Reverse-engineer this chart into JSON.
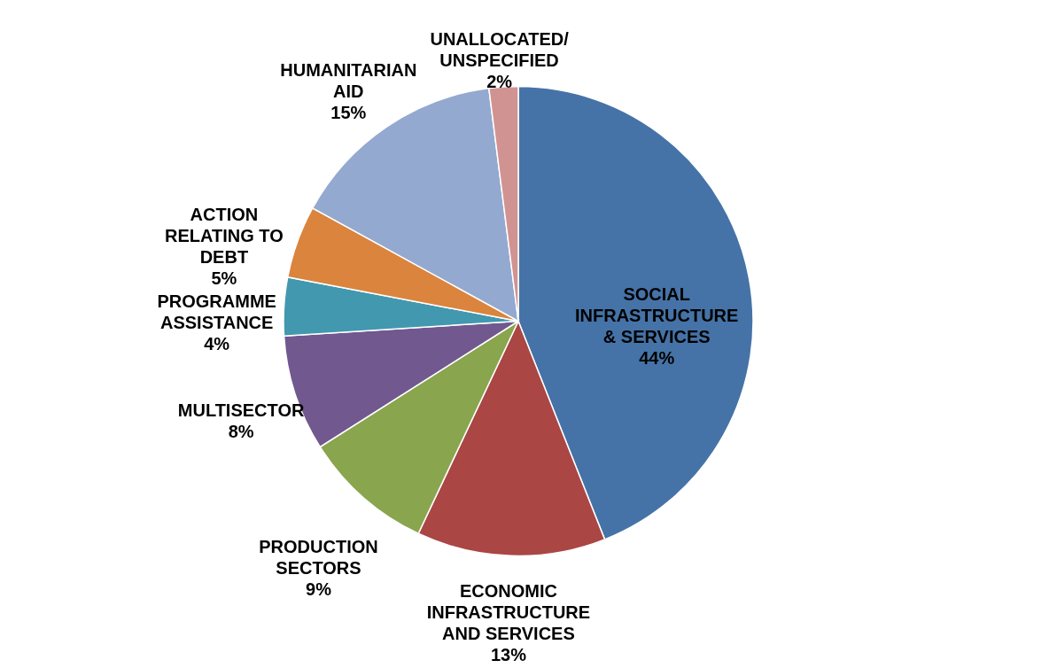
{
  "chart_data": {
    "type": "pie",
    "categories": [
      "SOCIAL INFRASTRUCTURE & SERVICES",
      "ECONOMIC INFRASTRUCTURE AND SERVICES",
      "PRODUCTION SECTORS",
      "MULTISECTOR",
      "PROGRAMME ASSISTANCE",
      "ACTION RELATING TO DEBT",
      "HUMANITARIAN AID",
      "UNALLOCATED/ UNSPECIFIED"
    ],
    "values": [
      44,
      13,
      9,
      8,
      4,
      5,
      15,
      2
    ],
    "value_labels": [
      "44%",
      "13%",
      "9%",
      "8%",
      "4%",
      "5%",
      "15%",
      "2%"
    ],
    "colors": [
      "#4573a7",
      "#aa4644",
      "#89a54e",
      "#71588f",
      "#4298af",
      "#db843d",
      "#93a9cf",
      "#d19392"
    ],
    "legend": false
  }
}
